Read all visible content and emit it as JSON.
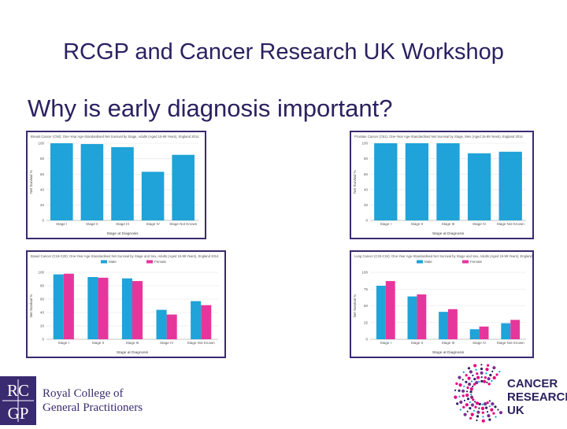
{
  "slide": {
    "title": "RCGP and Cancer Research UK Workshop",
    "subtitle": "Why is early diagnosis important?"
  },
  "logos": {
    "rcgp": {
      "mark_top": "RC",
      "mark_bottom": "GP",
      "line1": "Royal College of",
      "line2": "General Practitioners",
      "color": "#3a2a70"
    },
    "cruk": {
      "line1": "CANCER",
      "line2": "RESEARCH",
      "line3": "UK",
      "color": "#2b2160",
      "accent": "#e6007e"
    }
  },
  "colors": {
    "bar_blue": "#1fa3d8",
    "bar_pink": "#e6369c",
    "frame": "#3a2a70"
  },
  "chart_data": [
    {
      "type": "bar",
      "title": "Breast Cancer (C50): One-Year Age-Standardised Net Survival by Stage, Adults (Aged 15-99 Years), England 2014",
      "xlabel": "Stage at Diagnosis",
      "ylabel": "Net Survival %",
      "ylim": [
        0,
        100
      ],
      "yticks": [
        0,
        20,
        40,
        60,
        80,
        100
      ],
      "categories": [
        "Stage I",
        "Stage II",
        "Stage III",
        "Stage IV",
        "Stage Not Known"
      ],
      "series": [
        {
          "values": [
            100,
            99,
            95,
            63,
            85
          ]
        }
      ]
    },
    {
      "type": "bar",
      "title": "Prostate Cancer (C61): One-Year Age-Standardised Net Survival by Stage, Men (Aged 15-99 Years), England 2014",
      "xlabel": "Stage at Diagnosis",
      "ylabel": "Net Survival %",
      "ylim": [
        0,
        100
      ],
      "yticks": [
        0,
        20,
        40,
        60,
        80,
        100
      ],
      "categories": [
        "Stage I",
        "Stage II",
        "Stage III",
        "Stage IV",
        "Stage Not Known"
      ],
      "series": [
        {
          "values": [
            100,
            100,
            100,
            87,
            89
          ]
        }
      ]
    },
    {
      "type": "bar",
      "title": "Bowel Cancer (C18-C20): One-Year Age-Standardised Net Survival by Stage and Sex, Adults (Aged 15-99 Years), England 2014",
      "xlabel": "Stage at Diagnosis",
      "ylabel": "Net Survival %",
      "ylim": [
        0,
        100
      ],
      "yticks": [
        0,
        20,
        40,
        60,
        80,
        100
      ],
      "legend": "top",
      "categories": [
        "Stage I",
        "Stage II",
        "Stage III",
        "Stage IV",
        "Stage Not Known"
      ],
      "series": [
        {
          "name": "Male",
          "values": [
            97,
            93,
            91,
            44,
            57
          ]
        },
        {
          "name": "Female",
          "values": [
            98,
            92,
            87,
            37,
            51
          ]
        }
      ]
    },
    {
      "type": "bar",
      "title": "Lung Cancer (C33-C34): One-Year Age-Standardised Net Survival by Stage and Sex, Adults (Aged 15-99 Years), England 2014",
      "xlabel": "Stage at Diagnosis",
      "ylabel": "Net Survival %",
      "ylim": [
        0,
        100
      ],
      "yticks": [
        0,
        25,
        50,
        75,
        100
      ],
      "legend": "top",
      "categories": [
        "Stage I",
        "Stage II",
        "Stage III",
        "Stage IV",
        "Stage Not Known"
      ],
      "series": [
        {
          "name": "Male",
          "values": [
            80,
            64,
            41,
            15,
            24
          ]
        },
        {
          "name": "Female",
          "values": [
            87,
            67,
            45,
            19,
            29
          ]
        }
      ]
    }
  ]
}
